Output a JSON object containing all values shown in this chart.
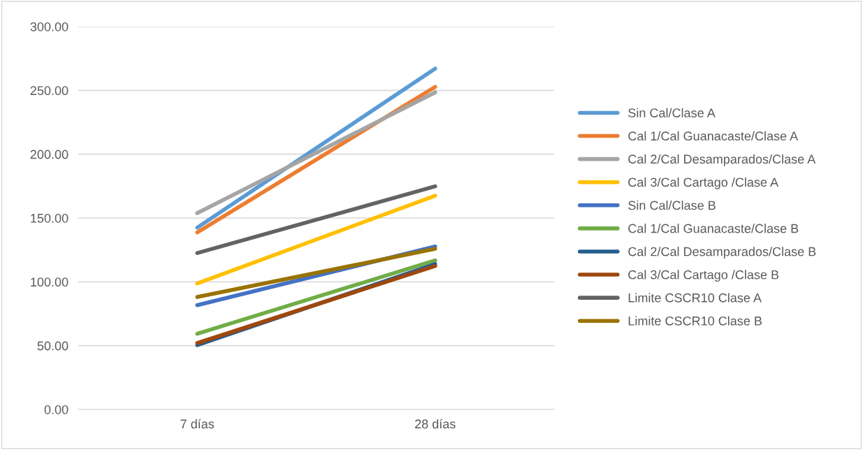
{
  "chart_data": {
    "type": "line",
    "categories": [
      "7 días",
      "28 días"
    ],
    "series": [
      {
        "name": "Sin Cal/Clase A",
        "color": "#5b9bd5",
        "values": [
          142.5,
          267.0
        ]
      },
      {
        "name": "Cal 1/Cal Guanacaste/Clase A",
        "color": "#ed7d31",
        "values": [
          138.7,
          252.7
        ]
      },
      {
        "name": "Cal 2/Cal Desamparados/Clase A",
        "color": "#a5a5a5",
        "values": [
          153.8,
          248.4
        ]
      },
      {
        "name": "Cal 3/Cal Cartago /Clase A",
        "color": "#ffc000",
        "values": [
          98.7,
          167.5
        ]
      },
      {
        "name": "Sin Cal/Clase B",
        "color": "#4472c4",
        "values": [
          81.7,
          127.7
        ]
      },
      {
        "name": "Cal 1/Cal Guanacaste/Clase B",
        "color": "#70ad47",
        "values": [
          59.3,
          116.8
        ]
      },
      {
        "name": "Cal 2/Cal Desamparados/Clase B",
        "color": "#255e91",
        "values": [
          50.4,
          114.0
        ]
      },
      {
        "name": "Cal 3/Cal Cartago /Clase B",
        "color": "#9e480e",
        "values": [
          52.0,
          112.4
        ]
      },
      {
        "name": "Limite CSCR10 Clase A",
        "color": "#636363",
        "values": [
          122.6,
          174.8
        ]
      },
      {
        "name": "Limite CSCR10 Clase B",
        "color": "#997300",
        "values": [
          88.1,
          125.9
        ]
      }
    ],
    "ylim": [
      0,
      300
    ],
    "yticks": [
      {
        "value": 0,
        "label": "0.00"
      },
      {
        "value": 50,
        "label": "50.00"
      },
      {
        "value": 100,
        "label": "100.00"
      },
      {
        "value": 150,
        "label": "150.00"
      },
      {
        "value": 200,
        "label": "200.00"
      },
      {
        "value": 250,
        "label": "250.00"
      },
      {
        "value": 300,
        "label": "300.00"
      }
    ],
    "grid": "y",
    "legend": "right",
    "marker": "none",
    "line_style": "solid"
  }
}
